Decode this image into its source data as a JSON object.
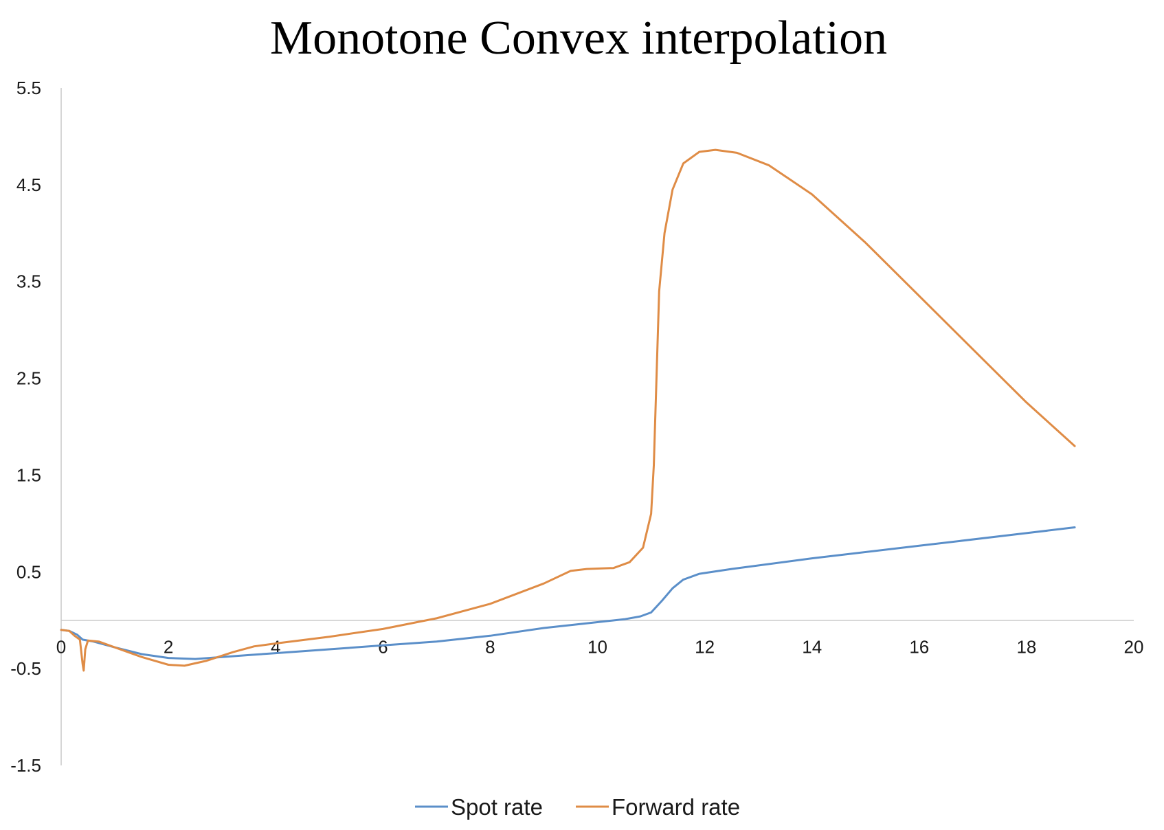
{
  "chart_data": {
    "type": "line",
    "title": "Monotone Convex interpolation",
    "xlim": [
      0,
      20
    ],
    "ylim": [
      -1.5,
      5.5
    ],
    "x_ticks": [
      "0",
      "2",
      "4",
      "6",
      "8",
      "10",
      "12",
      "14",
      "16",
      "18",
      "20"
    ],
    "y_ticks": [
      "-1.5",
      "-0.5",
      "0.5",
      "1.5",
      "2.5",
      "3.5",
      "4.5",
      "5.5"
    ],
    "grid": false,
    "legend_position": "bottom",
    "series": [
      {
        "name": "Spot rate",
        "color": "#5b8fc9",
        "points": [
          [
            0,
            -0.1
          ],
          [
            0.15,
            -0.11
          ],
          [
            0.3,
            -0.15
          ],
          [
            0.4,
            -0.2
          ],
          [
            0.6,
            -0.22
          ],
          [
            1.0,
            -0.28
          ],
          [
            1.5,
            -0.35
          ],
          [
            2.0,
            -0.39
          ],
          [
            2.5,
            -0.4
          ],
          [
            3.0,
            -0.38
          ],
          [
            3.5,
            -0.36
          ],
          [
            4.0,
            -0.34
          ],
          [
            5.0,
            -0.3
          ],
          [
            6.0,
            -0.26
          ],
          [
            7.0,
            -0.22
          ],
          [
            8.0,
            -0.16
          ],
          [
            9.0,
            -0.08
          ],
          [
            10.0,
            -0.02
          ],
          [
            10.5,
            0.01
          ],
          [
            10.8,
            0.04
          ],
          [
            11.0,
            0.08
          ],
          [
            11.2,
            0.2
          ],
          [
            11.4,
            0.33
          ],
          [
            11.6,
            0.42
          ],
          [
            11.9,
            0.48
          ],
          [
            12.5,
            0.53
          ],
          [
            14.0,
            0.64
          ],
          [
            16.0,
            0.77
          ],
          [
            18.0,
            0.9
          ],
          [
            18.9,
            0.96
          ]
        ]
      },
      {
        "name": "Forward rate",
        "color": "#df8c46",
        "points": [
          [
            0,
            -0.1
          ],
          [
            0.15,
            -0.11
          ],
          [
            0.25,
            -0.16
          ],
          [
            0.35,
            -0.2
          ],
          [
            0.4,
            -0.45
          ],
          [
            0.42,
            -0.52
          ],
          [
            0.45,
            -0.3
          ],
          [
            0.5,
            -0.21
          ],
          [
            0.7,
            -0.22
          ],
          [
            1.0,
            -0.28
          ],
          [
            1.5,
            -0.38
          ],
          [
            2.0,
            -0.46
          ],
          [
            2.3,
            -0.47
          ],
          [
            2.7,
            -0.42
          ],
          [
            3.2,
            -0.33
          ],
          [
            3.6,
            -0.27
          ],
          [
            4.0,
            -0.24
          ],
          [
            5.0,
            -0.17
          ],
          [
            6.0,
            -0.09
          ],
          [
            7.0,
            0.02
          ],
          [
            8.0,
            0.17
          ],
          [
            9.0,
            0.38
          ],
          [
            9.5,
            0.51
          ],
          [
            9.8,
            0.53
          ],
          [
            10.3,
            0.54
          ],
          [
            10.6,
            0.6
          ],
          [
            10.85,
            0.75
          ],
          [
            11.0,
            1.1
          ],
          [
            11.05,
            1.6
          ],
          [
            11.1,
            2.5
          ],
          [
            11.15,
            3.4
          ],
          [
            11.25,
            4.0
          ],
          [
            11.4,
            4.45
          ],
          [
            11.6,
            4.72
          ],
          [
            11.9,
            4.84
          ],
          [
            12.2,
            4.86
          ],
          [
            12.6,
            4.83
          ],
          [
            13.2,
            4.7
          ],
          [
            14.0,
            4.4
          ],
          [
            15.0,
            3.9
          ],
          [
            16.0,
            3.35
          ],
          [
            17.0,
            2.8
          ],
          [
            18.0,
            2.25
          ],
          [
            18.9,
            1.8
          ]
        ]
      }
    ]
  }
}
